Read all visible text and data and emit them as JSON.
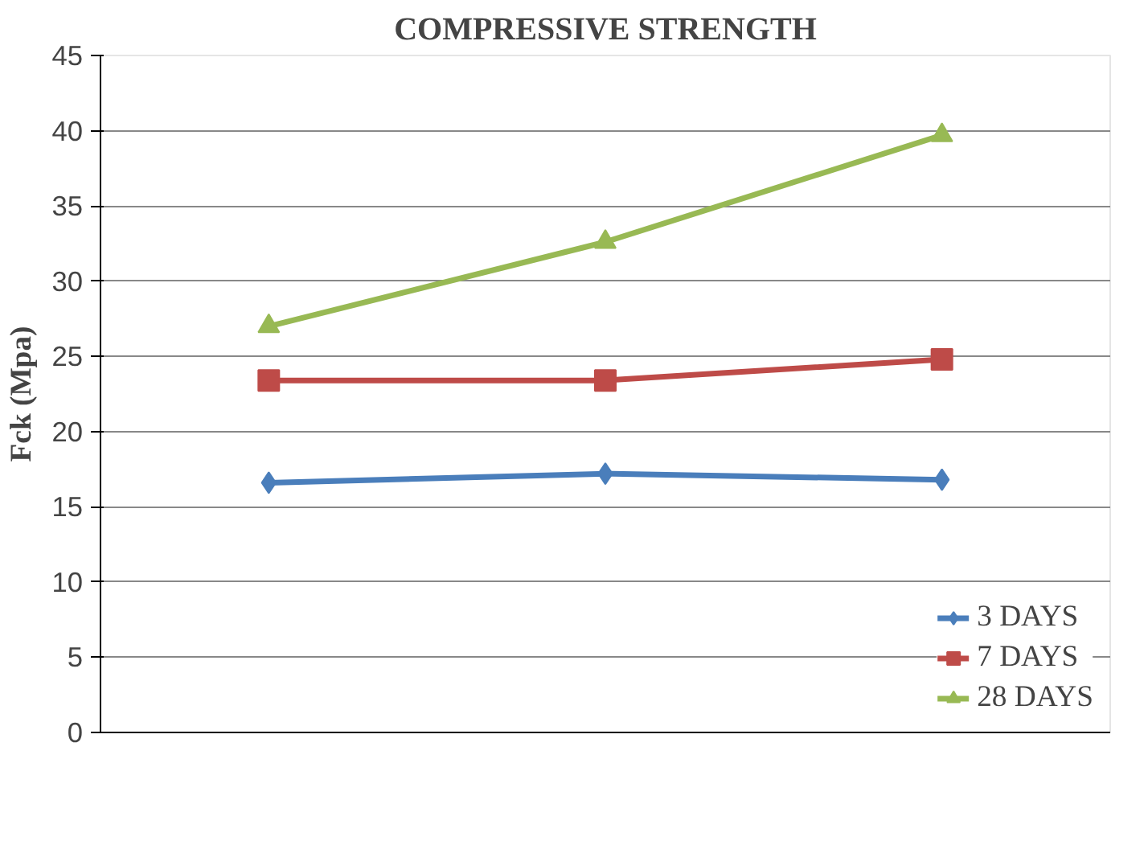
{
  "chart_data": {
    "type": "line",
    "title": "COMPRESSIVE STRENGTH",
    "ylabel": "Fck (Mpa)",
    "categories": [
      null,
      null,
      null
    ],
    "series": [
      {
        "name": "3 DAYS",
        "color": "#4a7ebb",
        "values": [
          16.6,
          17.2,
          16.8
        ],
        "marker": "diamond"
      },
      {
        "name": "7 DAYS",
        "color": "#be4b48",
        "values": [
          23.4,
          23.4,
          24.8
        ],
        "marker": "square"
      },
      {
        "name": "28 DAYS",
        "color": "#98b954",
        "values": [
          27.0,
          32.6,
          39.7
        ],
        "marker": "triangle"
      }
    ],
    "ylim": [
      0,
      45
    ],
    "yticks": [
      0,
      5,
      10,
      15,
      20,
      25,
      30,
      35,
      40,
      45
    ],
    "grid": "y",
    "legend": "bottom right",
    "line_style": "solid"
  }
}
